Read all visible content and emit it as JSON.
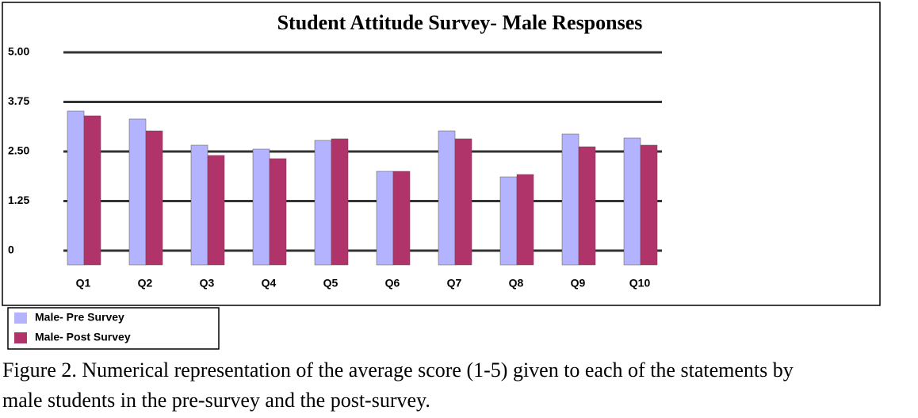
{
  "chart_data": {
    "type": "bar",
    "title": "Student Attitude Survey- Male Responses",
    "categories": [
      "Q1",
      "Q2",
      "Q3",
      "Q4",
      "Q5",
      "Q6",
      "Q7",
      "Q8",
      "Q9",
      "Q10"
    ],
    "series": [
      {
        "name": "Male- Pre Survey",
        "color": "#b3b3ff",
        "values": [
          3.88,
          3.68,
          3.02,
          2.92,
          3.14,
          2.36,
          3.38,
          2.22,
          3.3,
          3.2
        ]
      },
      {
        "name": "Male- Post Survey",
        "color": "#b0336a",
        "values": [
          3.76,
          3.38,
          2.76,
          2.68,
          3.18,
          2.36,
          3.18,
          2.28,
          2.98,
          3.02
        ]
      }
    ],
    "ylim": [
      0,
      5
    ],
    "yticks": [
      0,
      1.25,
      {
        "value": 2.5,
        "label": "2.50"
      },
      3.75,
      {
        "value": 5,
        "label": "5.00"
      }
    ],
    "grid": true,
    "legend": "bottom-left"
  },
  "caption": "Figure 2. Numerical representation of the average score (1-5) given to each of the statements by male students in the pre-survey and the post-survey."
}
